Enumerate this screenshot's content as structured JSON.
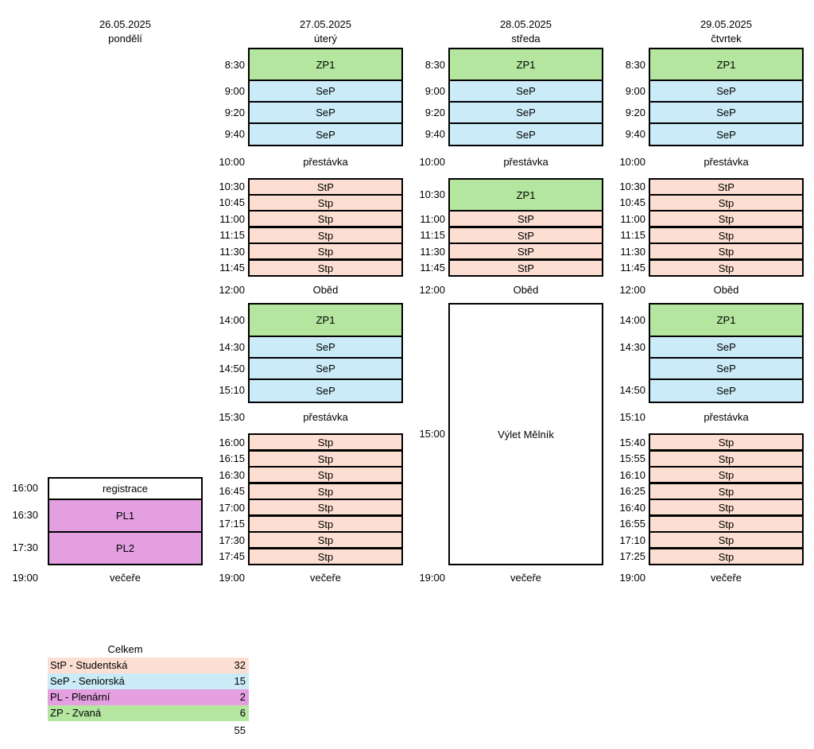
{
  "days": [
    {
      "date": "26.05.2025",
      "weekday": "pondělí"
    },
    {
      "date": "27.05.2025",
      "weekday": "úterý"
    },
    {
      "date": "28.05.2025",
      "weekday": "středa"
    },
    {
      "date": "29.05.2025",
      "weekday": "čtvrtek"
    }
  ],
  "monday": {
    "times": [
      "16:00",
      "16:30",
      "17:30",
      "19:00"
    ],
    "blocks": [
      "registrace",
      "PL1",
      "PL2"
    ],
    "dinner": "večeře"
  },
  "tuesday": {
    "times": [
      "8:30",
      "9:00",
      "9:20",
      "9:40",
      "10:00",
      "10:30",
      "10:45",
      "11:00",
      "11:15",
      "11:30",
      "11:45",
      "12:00",
      "14:00",
      "14:30",
      "14:50",
      "15:10",
      "15:30",
      "16:00",
      "16:15",
      "16:30",
      "16:45",
      "17:00",
      "17:15",
      "17:30",
      "17:45",
      "19:00"
    ],
    "blocks": [
      "ZP1",
      "SeP",
      "SeP",
      "SeP",
      "StP",
      "Stp",
      "Stp",
      "Stp",
      "Stp",
      "Stp",
      "ZP1",
      "SeP",
      "SeP",
      "SeP",
      "Stp",
      "Stp",
      "Stp",
      "Stp",
      "Stp",
      "Stp",
      "Stp",
      "Stp"
    ],
    "break1": "přestávka",
    "lunch": "Oběd",
    "break2": "přestávka",
    "dinner": "večeře"
  },
  "wednesday": {
    "times": [
      "8:30",
      "9:00",
      "9:20",
      "9:40",
      "10:00",
      "10:30",
      "11:00",
      "11:15",
      "11:30",
      "11:45",
      "12:00",
      "15:00",
      "19:00"
    ],
    "blocks": [
      "ZP1",
      "SeP",
      "SeP",
      "SeP",
      "ZP1",
      "StP",
      "StP",
      "StP",
      "StP",
      "Výlet Mělník"
    ],
    "break1": "přestávka",
    "lunch": "Oběd",
    "dinner": "večeře"
  },
  "thursday": {
    "times": [
      "8:30",
      "9:00",
      "9:20",
      "9:40",
      "10:00",
      "10:30",
      "10:45",
      "11:00",
      "11:15",
      "11:30",
      "11:45",
      "12:00",
      "14:00",
      "14:30",
      "14:50",
      "15:10",
      "15:40",
      "15:55",
      "16:10",
      "16:25",
      "16:40",
      "16:55",
      "17:10",
      "17:25",
      "19:00"
    ],
    "blocks": [
      "ZP1",
      "SeP",
      "SeP",
      "SeP",
      "StP",
      "Stp",
      "Stp",
      "Stp",
      "Stp",
      "Stp",
      "ZP1",
      "SeP",
      "SeP",
      "SeP",
      "Stp",
      "Stp",
      "Stp",
      "Stp",
      "Stp",
      "Stp",
      "Stp",
      "Stp"
    ],
    "break1": "přestávka",
    "lunch": "Oběd",
    "break2": "přestávka",
    "dinner": "večeře"
  },
  "summary": {
    "title": "Celkem",
    "rows": [
      {
        "label": "StP - Studentská",
        "value": "32",
        "color": "#fcdfd2"
      },
      {
        "label": "SeP - Seniorská",
        "value": "15",
        "color": "#caebf7"
      },
      {
        "label": "PL - Plenární",
        "value": "2",
        "color": "#e39fdf"
      },
      {
        "label": "ZP - Zvaná",
        "value": "6",
        "color": "#b4e6a0"
      }
    ],
    "total": "55"
  }
}
